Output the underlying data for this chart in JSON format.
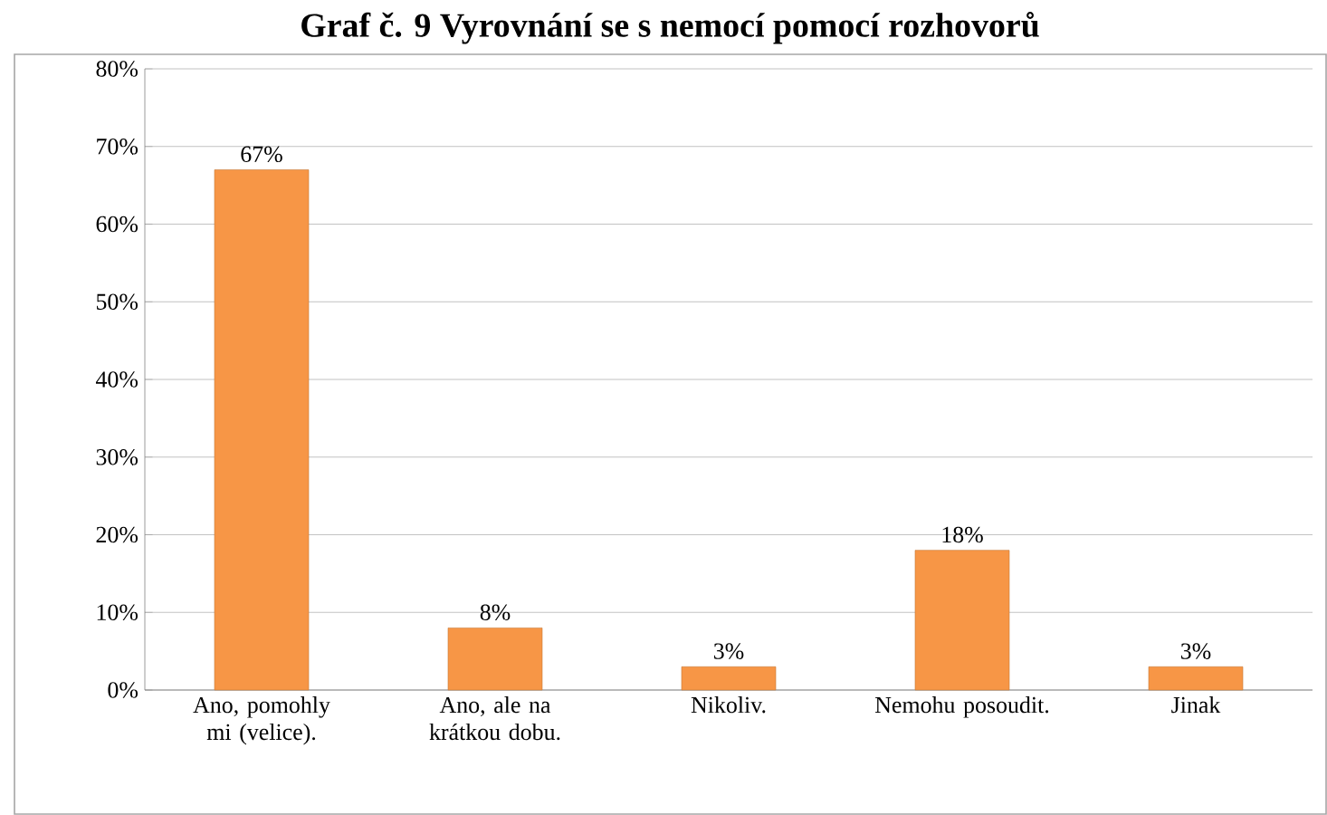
{
  "chart_data": {
    "type": "bar",
    "title": "Graf č. 9 Vyrovnání se s nemocí pomocí rozhovorů",
    "categories": [
      "Ano, pomohly mi (velice).",
      "Ano, ale na krátkou dobu.",
      "Nikoliv.",
      "Nemohu posoudit.",
      "Jinak"
    ],
    "values": [
      67,
      8,
      3,
      18,
      3
    ],
    "value_labels": [
      "67%",
      "8%",
      "3%",
      "18%",
      "3%"
    ],
    "color": "#f79646",
    "ylim": [
      0,
      80
    ],
    "yticks": [
      {
        "value": 0,
        "label": "0%"
      },
      {
        "value": 10,
        "label": "10%"
      },
      {
        "value": 20,
        "label": "20%"
      },
      {
        "value": 30,
        "label": "30%"
      },
      {
        "value": 40,
        "label": "40%"
      },
      {
        "value": 50,
        "label": "50%"
      },
      {
        "value": 60,
        "label": "60%"
      },
      {
        "value": 70,
        "label": "70%"
      },
      {
        "value": 80,
        "label": "80%"
      }
    ],
    "grid": "y"
  }
}
